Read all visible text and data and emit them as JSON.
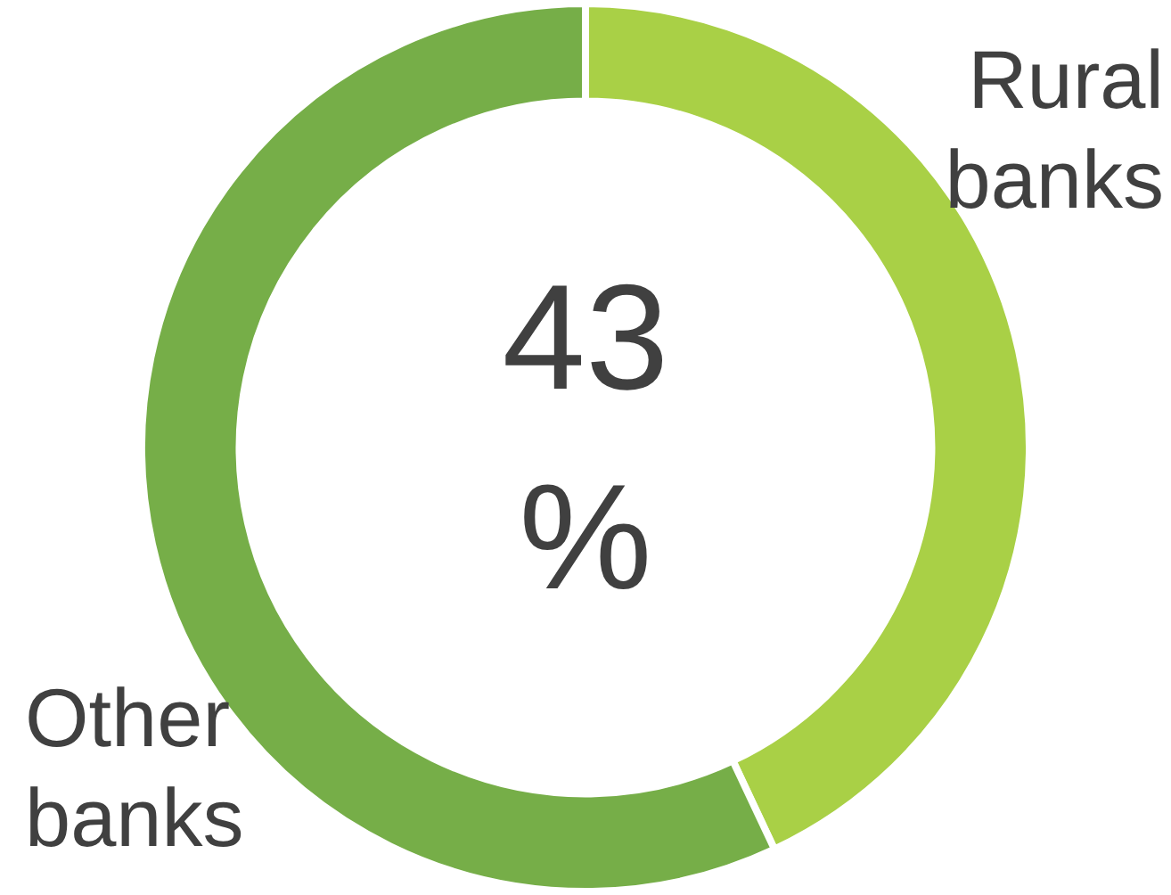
{
  "chart_data": {
    "type": "donut",
    "categories": [
      "Rural banks",
      "Other banks"
    ],
    "values": [
      43,
      57
    ],
    "colors": [
      "#a9d046",
      "#76ae48"
    ],
    "legend": false,
    "annotations": [
      "43 %"
    ]
  }
}
